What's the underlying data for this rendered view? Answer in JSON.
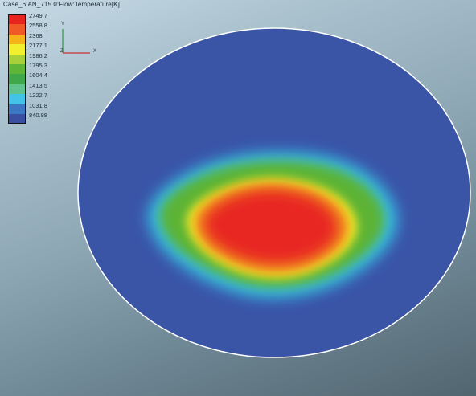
{
  "viewer": {
    "title": "Case_6:AN_715.0:Flow:Temperature[K]"
  },
  "legend": {
    "items": [
      {
        "label": "2749.7",
        "color": "#e8231f"
      },
      {
        "label": "2558.8",
        "color": "#ef5a26"
      },
      {
        "label": "2368",
        "color": "#f6b21b"
      },
      {
        "label": "2177.1",
        "color": "#f2ef2e"
      },
      {
        "label": "1986.2",
        "color": "#a8d03a"
      },
      {
        "label": "1795.3",
        "color": "#5fb538"
      },
      {
        "label": "1604.4",
        "color": "#3ea84a"
      },
      {
        "label": "1413.5",
        "color": "#5ec38c"
      },
      {
        "label": "1222.7",
        "color": "#44c3e8"
      },
      {
        "label": "1031.8",
        "color": "#3b78c4"
      },
      {
        "label": "840.88",
        "color": "#3b4fa2"
      }
    ]
  },
  "axes": {
    "y_label": "Y",
    "z_label": "Z",
    "x_label": "X",
    "y_color": "#2a9a3a",
    "x_color": "#c8303a"
  },
  "contour": {
    "colors": {
      "background": "#3a54a6",
      "cyan": "#35c0e8",
      "green": "#5bb335",
      "yellow": "#f1ec2b",
      "orange": "#f3a11f",
      "red": "#e82620",
      "outline": "#ffffff"
    }
  }
}
